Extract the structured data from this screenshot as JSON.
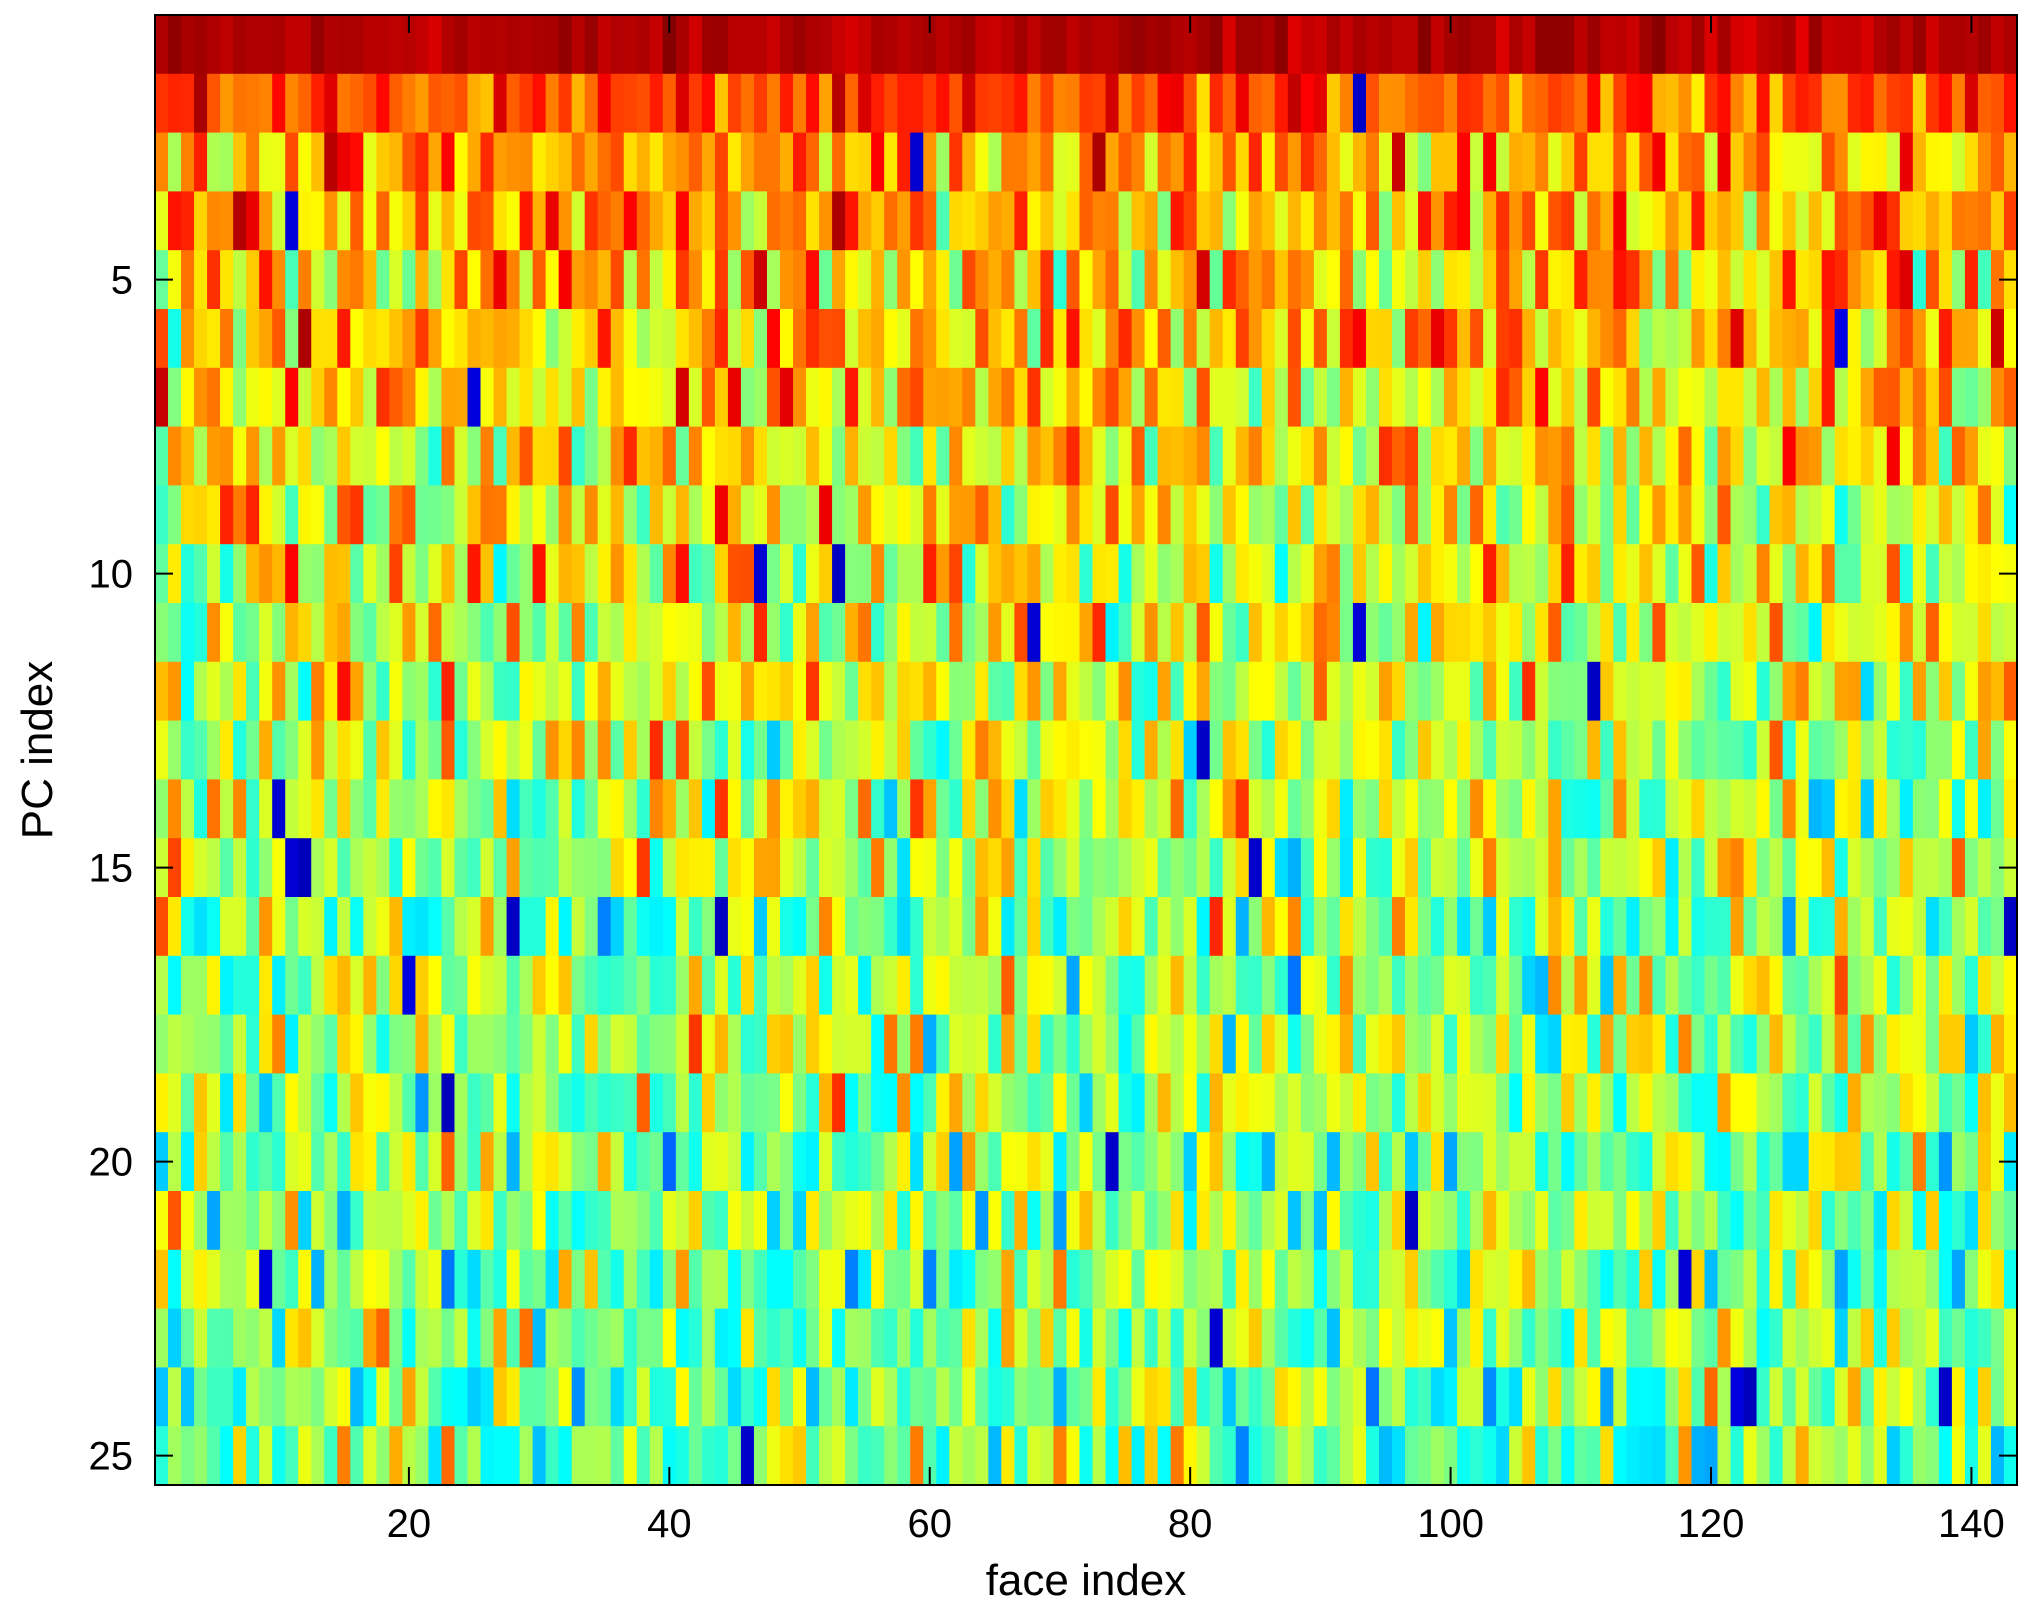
{
  "chart_data": {
    "type": "heatmap",
    "title": "",
    "xlabel": "face index",
    "ylabel": "PC index",
    "x_range": [
      1,
      143
    ],
    "y_range": [
      1,
      25
    ],
    "y_direction": "top-to-bottom",
    "x_ticks": [
      20,
      40,
      60,
      80,
      100,
      120,
      140
    ],
    "x_tick_labels": [
      "20",
      "40",
      "60",
      "80",
      "100",
      "120",
      "140"
    ],
    "y_ticks": [
      5,
      10,
      15,
      20,
      25
    ],
    "y_tick_labels": [
      "5",
      "10",
      "15",
      "20",
      "25"
    ],
    "grid": false,
    "colormap": "jet",
    "colormap_stops": [
      "#00008f",
      "#0000ff",
      "#0080ff",
      "#00ffff",
      "#80ff80",
      "#ffff00",
      "#ff8000",
      "#ff0000",
      "#800000"
    ],
    "row_profile": {
      "description_of_rows": "mean normalized intensity per PC row (0 = dark blue, 1 = dark red)",
      "mean_intensity": [
        0.95,
        0.8,
        0.72,
        0.71,
        0.68,
        0.67,
        0.65,
        0.64,
        0.62,
        0.61,
        0.6,
        0.59,
        0.57,
        0.56,
        0.55,
        0.54,
        0.54,
        0.53,
        0.53,
        0.52,
        0.52,
        0.51,
        0.51,
        0.51,
        0.5
      ],
      "spread": [
        0.02,
        0.06,
        0.09,
        0.1,
        0.11,
        0.11,
        0.11,
        0.11,
        0.11,
        0.11,
        0.11,
        0.11,
        0.11,
        0.11,
        0.11,
        0.11,
        0.11,
        0.11,
        0.11,
        0.11,
        0.11,
        0.11,
        0.11,
        0.11,
        0.11
      ]
    },
    "notable_low_cells": [
      {
        "pc": 2,
        "face": 93
      },
      {
        "pc": 3,
        "face": 59
      },
      {
        "pc": 4,
        "face": 11
      },
      {
        "pc": 6,
        "face": 130
      },
      {
        "pc": 7,
        "face": 25
      },
      {
        "pc": 10,
        "face": 47
      },
      {
        "pc": 10,
        "face": 53
      },
      {
        "pc": 11,
        "face": 68
      },
      {
        "pc": 11,
        "face": 93
      },
      {
        "pc": 12,
        "face": 111
      },
      {
        "pc": 13,
        "face": 81
      },
      {
        "pc": 14,
        "face": 10
      },
      {
        "pc": 15,
        "face": 11
      },
      {
        "pc": 15,
        "face": 12
      },
      {
        "pc": 15,
        "face": 85
      },
      {
        "pc": 16,
        "face": 28
      },
      {
        "pc": 16,
        "face": 44
      },
      {
        "pc": 16,
        "face": 143
      },
      {
        "pc": 17,
        "face": 20
      },
      {
        "pc": 19,
        "face": 23
      },
      {
        "pc": 20,
        "face": 74
      },
      {
        "pc": 21,
        "face": 97
      },
      {
        "pc": 22,
        "face": 9
      },
      {
        "pc": 22,
        "face": 118
      },
      {
        "pc": 23,
        "face": 82
      },
      {
        "pc": 24,
        "face": 122
      },
      {
        "pc": 24,
        "face": 123
      },
      {
        "pc": 24,
        "face": 138
      },
      {
        "pc": 25,
        "face": 46
      }
    ]
  }
}
